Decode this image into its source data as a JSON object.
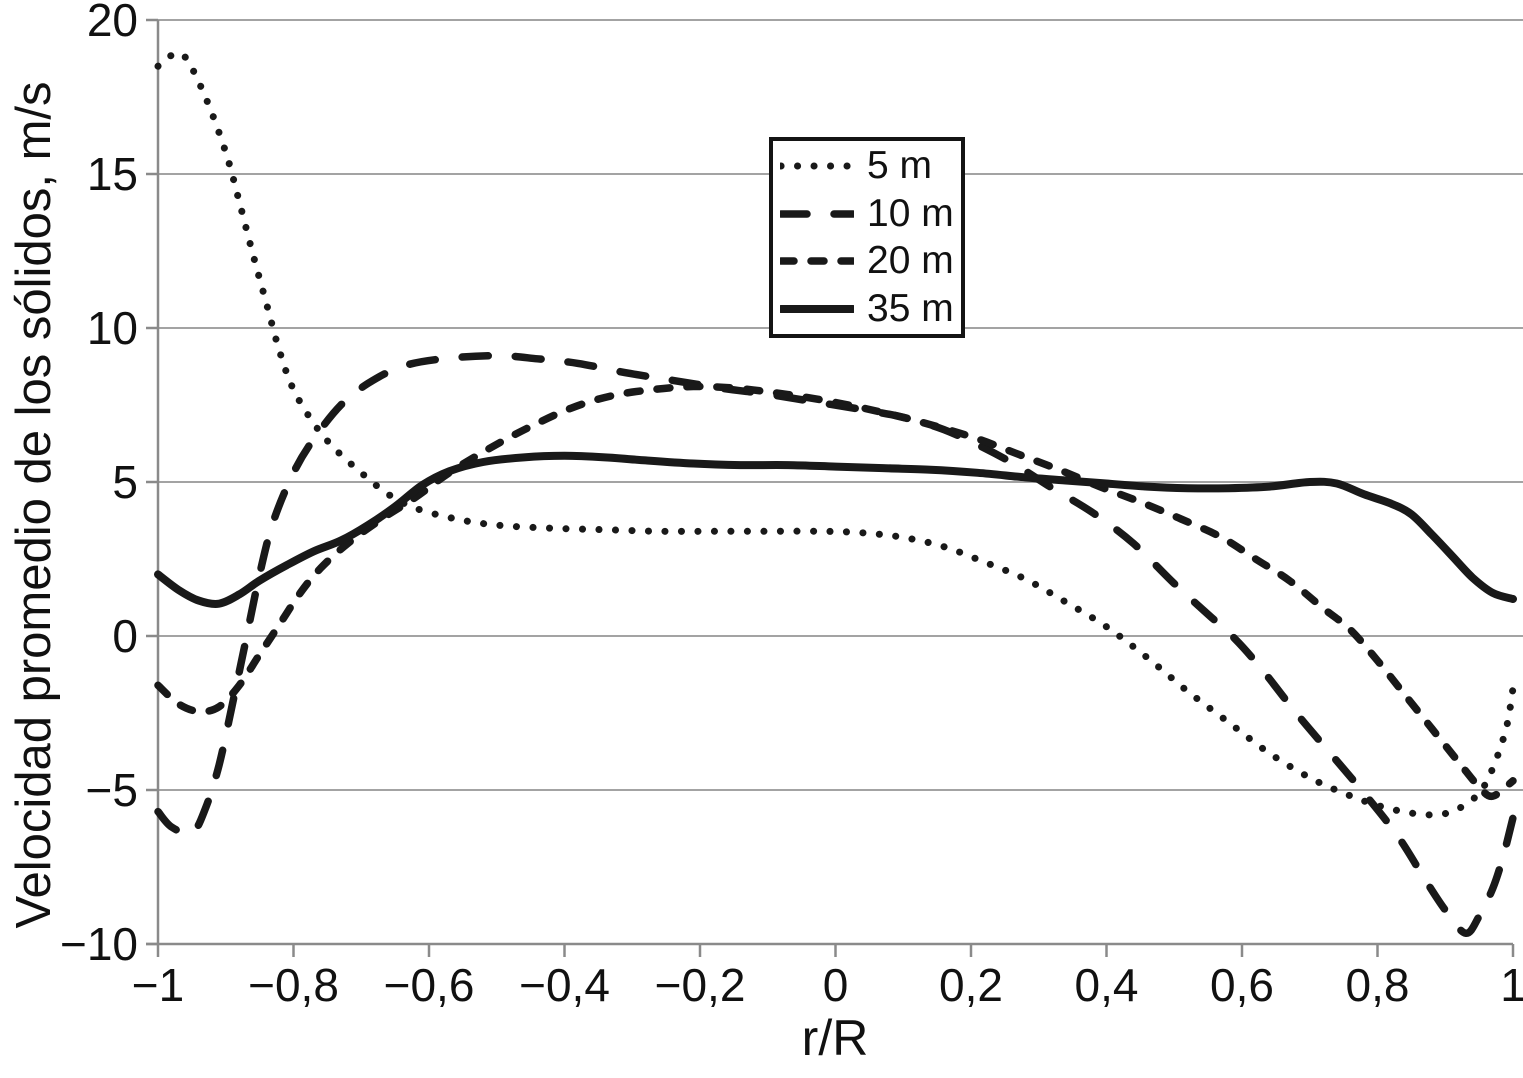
{
  "chart_data": {
    "type": "line",
    "title": "",
    "xlabel": "r/R",
    "ylabel": "Velocidad promedio de los sólidos, m/s",
    "xlim": [
      -1,
      1
    ],
    "ylim": [
      -10,
      20
    ],
    "grid": "horizontal",
    "decimal_separator": ",",
    "x_ticks": {
      "values": [
        -1,
        -0.8,
        -0.6,
        -0.4,
        -0.2,
        0,
        0.2,
        0.4,
        0.6,
        0.8,
        1
      ],
      "labels": [
        "−1",
        "−0,8",
        "−0,6",
        "−0,4",
        "−0,2",
        "0",
        "0,2",
        "0,4",
        "0,6",
        "0,8",
        "1"
      ]
    },
    "y_ticks": {
      "values": [
        20,
        15,
        10,
        5,
        0,
        -5,
        -10
      ],
      "labels": [
        "20",
        "15",
        "10",
        "5",
        "0",
        "−5",
        "−10"
      ]
    },
    "legend": {
      "position": "upper-center"
    },
    "series": [
      {
        "name": "5 m",
        "style": "dotted",
        "points": [
          [
            -1,
            18.5
          ],
          [
            -0.98,
            18.85
          ],
          [
            -0.96,
            18.8
          ],
          [
            -0.93,
            17.5
          ],
          [
            -0.9,
            15.7
          ],
          [
            -0.88,
            14.1
          ],
          [
            -0.86,
            12.4
          ],
          [
            -0.84,
            10.8
          ],
          [
            -0.82,
            9.2
          ],
          [
            -0.8,
            8.0
          ],
          [
            -0.77,
            6.9
          ],
          [
            -0.74,
            6.1
          ],
          [
            -0.7,
            5.3
          ],
          [
            -0.66,
            4.6
          ],
          [
            -0.62,
            4.15
          ],
          [
            -0.56,
            3.8
          ],
          [
            -0.5,
            3.6
          ],
          [
            -0.42,
            3.5
          ],
          [
            -0.34,
            3.45
          ],
          [
            -0.26,
            3.4
          ],
          [
            -0.18,
            3.4
          ],
          [
            -0.1,
            3.4
          ],
          [
            -0.02,
            3.4
          ],
          [
            0.04,
            3.35
          ],
          [
            0.1,
            3.2
          ],
          [
            0.16,
            2.9
          ],
          [
            0.22,
            2.4
          ],
          [
            0.28,
            1.85
          ],
          [
            0.34,
            1.1
          ],
          [
            0.4,
            0.3
          ],
          [
            0.46,
            -0.7
          ],
          [
            0.52,
            -1.8
          ],
          [
            0.58,
            -2.8
          ],
          [
            0.64,
            -3.8
          ],
          [
            0.7,
            -4.6
          ],
          [
            0.75,
            -5.1
          ],
          [
            0.8,
            -5.5
          ],
          [
            0.85,
            -5.75
          ],
          [
            0.89,
            -5.8
          ],
          [
            0.92,
            -5.6
          ],
          [
            0.95,
            -5.1
          ],
          [
            0.97,
            -4.3
          ],
          [
            0.99,
            -3.0
          ],
          [
            1,
            -1.7
          ]
        ]
      },
      {
        "name": "10 m",
        "style": "long-dash",
        "points": [
          [
            -1,
            -5.7
          ],
          [
            -0.98,
            -6.2
          ],
          [
            -0.95,
            -6.4
          ],
          [
            -0.93,
            -5.6
          ],
          [
            -0.91,
            -4.2
          ],
          [
            -0.89,
            -2.2
          ],
          [
            -0.87,
            -0.1
          ],
          [
            -0.85,
            2.0
          ],
          [
            -0.83,
            3.7
          ],
          [
            -0.8,
            5.3
          ],
          [
            -0.77,
            6.4
          ],
          [
            -0.73,
            7.5
          ],
          [
            -0.69,
            8.2
          ],
          [
            -0.64,
            8.75
          ],
          [
            -0.58,
            9.0
          ],
          [
            -0.5,
            9.1
          ],
          [
            -0.44,
            9.0
          ],
          [
            -0.38,
            8.85
          ],
          [
            -0.31,
            8.55
          ],
          [
            -0.24,
            8.3
          ],
          [
            -0.17,
            8.05
          ],
          [
            -0.1,
            7.85
          ],
          [
            -0.03,
            7.6
          ],
          [
            0.04,
            7.35
          ],
          [
            0.1,
            7.1
          ],
          [
            0.16,
            6.7
          ],
          [
            0.22,
            6.1
          ],
          [
            0.27,
            5.5
          ],
          [
            0.32,
            4.8
          ],
          [
            0.38,
            4.0
          ],
          [
            0.44,
            3.0
          ],
          [
            0.5,
            1.7
          ],
          [
            0.55,
            0.7
          ],
          [
            0.59,
            -0.1
          ],
          [
            0.63,
            -1.1
          ],
          [
            0.68,
            -2.5
          ],
          [
            0.73,
            -3.8
          ],
          [
            0.78,
            -5.1
          ],
          [
            0.83,
            -6.5
          ],
          [
            0.87,
            -7.9
          ],
          [
            0.9,
            -8.9
          ],
          [
            0.93,
            -9.65
          ],
          [
            0.95,
            -9.1
          ],
          [
            0.97,
            -8.2
          ],
          [
            0.985,
            -7.2
          ],
          [
            1,
            -5.9
          ]
        ]
      },
      {
        "name": "20 m",
        "style": "short-dash",
        "points": [
          [
            -1,
            -1.6
          ],
          [
            -0.97,
            -2.2
          ],
          [
            -0.94,
            -2.45
          ],
          [
            -0.91,
            -2.3
          ],
          [
            -0.88,
            -1.6
          ],
          [
            -0.85,
            -0.6
          ],
          [
            -0.82,
            0.4
          ],
          [
            -0.79,
            1.4
          ],
          [
            -0.76,
            2.2
          ],
          [
            -0.72,
            3.0
          ],
          [
            -0.67,
            3.8
          ],
          [
            -0.62,
            4.5
          ],
          [
            -0.57,
            5.3
          ],
          [
            -0.51,
            6.1
          ],
          [
            -0.45,
            6.8
          ],
          [
            -0.39,
            7.4
          ],
          [
            -0.33,
            7.8
          ],
          [
            -0.27,
            8.0
          ],
          [
            -0.21,
            8.1
          ],
          [
            -0.15,
            8.05
          ],
          [
            -0.09,
            7.9
          ],
          [
            -0.03,
            7.7
          ],
          [
            0.03,
            7.45
          ],
          [
            0.09,
            7.15
          ],
          [
            0.15,
            6.8
          ],
          [
            0.21,
            6.4
          ],
          [
            0.27,
            5.9
          ],
          [
            0.33,
            5.4
          ],
          [
            0.39,
            4.85
          ],
          [
            0.45,
            4.35
          ],
          [
            0.51,
            3.8
          ],
          [
            0.57,
            3.2
          ],
          [
            0.62,
            2.5
          ],
          [
            0.67,
            1.8
          ],
          [
            0.72,
            0.9
          ],
          [
            0.76,
            0.2
          ],
          [
            0.8,
            -0.8
          ],
          [
            0.84,
            -1.9
          ],
          [
            0.88,
            -3.0
          ],
          [
            0.92,
            -4.1
          ],
          [
            0.95,
            -4.9
          ],
          [
            0.97,
            -5.2
          ],
          [
            1,
            -4.7
          ]
        ]
      },
      {
        "name": "35 m",
        "style": "solid",
        "points": [
          [
            -1,
            2.0
          ],
          [
            -0.97,
            1.5
          ],
          [
            -0.94,
            1.15
          ],
          [
            -0.91,
            1.05
          ],
          [
            -0.88,
            1.35
          ],
          [
            -0.85,
            1.8
          ],
          [
            -0.81,
            2.3
          ],
          [
            -0.77,
            2.75
          ],
          [
            -0.73,
            3.1
          ],
          [
            -0.69,
            3.6
          ],
          [
            -0.65,
            4.2
          ],
          [
            -0.61,
            4.9
          ],
          [
            -0.57,
            5.35
          ],
          [
            -0.52,
            5.65
          ],
          [
            -0.46,
            5.8
          ],
          [
            -0.4,
            5.85
          ],
          [
            -0.34,
            5.8
          ],
          [
            -0.28,
            5.7
          ],
          [
            -0.21,
            5.6
          ],
          [
            -0.14,
            5.55
          ],
          [
            -0.07,
            5.55
          ],
          [
            0,
            5.5
          ],
          [
            0.07,
            5.45
          ],
          [
            0.14,
            5.4
          ],
          [
            0.21,
            5.3
          ],
          [
            0.28,
            5.15
          ],
          [
            0.34,
            5.05
          ],
          [
            0.4,
            4.95
          ],
          [
            0.46,
            4.85
          ],
          [
            0.52,
            4.8
          ],
          [
            0.58,
            4.8
          ],
          [
            0.64,
            4.85
          ],
          [
            0.7,
            5.0
          ],
          [
            0.74,
            4.95
          ],
          [
            0.78,
            4.6
          ],
          [
            0.82,
            4.3
          ],
          [
            0.85,
            3.95
          ],
          [
            0.88,
            3.3
          ],
          [
            0.91,
            2.6
          ],
          [
            0.94,
            1.9
          ],
          [
            0.97,
            1.4
          ],
          [
            1,
            1.2
          ]
        ]
      }
    ],
    "colors": {
      "line": "#191919",
      "grid": "#a3a3a3",
      "axis": "#8a8a8a",
      "text": "#111111",
      "legend_border": "#141414",
      "background": "#ffffff"
    }
  }
}
